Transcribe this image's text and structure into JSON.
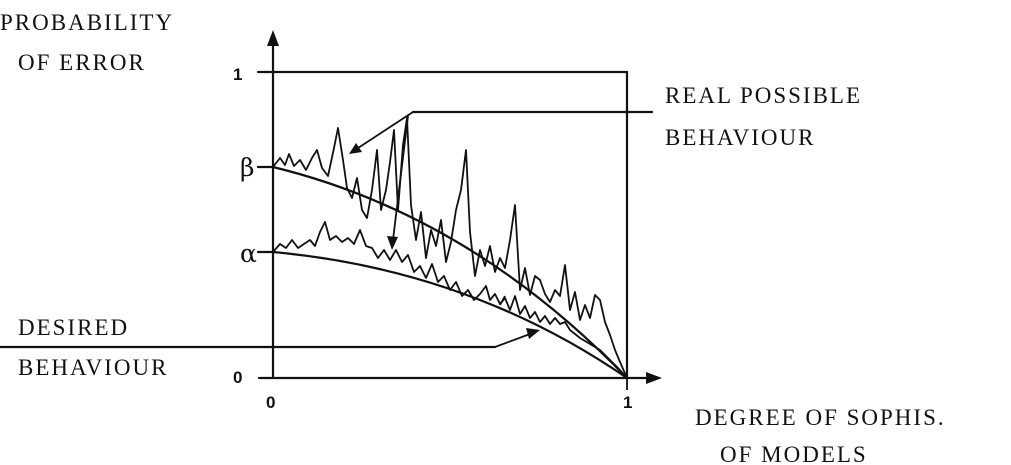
{
  "labels": {
    "y_axis_line1": "PROBABILITY",
    "y_axis_line2": "OF  ERROR",
    "x_axis_line1": "DEGREE OF SOPHIS.",
    "x_axis_line2": "OF  MODELS",
    "real_line1": "REAL  POSSIBLE",
    "real_line2": "BEHAVIOUR",
    "desired_line1": "DESIRED",
    "desired_line2": "BEHAVIOUR"
  },
  "ticks": {
    "y_one": "1",
    "y_zero": "0",
    "x_zero": "0",
    "x_one": "1",
    "beta": "β",
    "alpha": "α"
  }
}
